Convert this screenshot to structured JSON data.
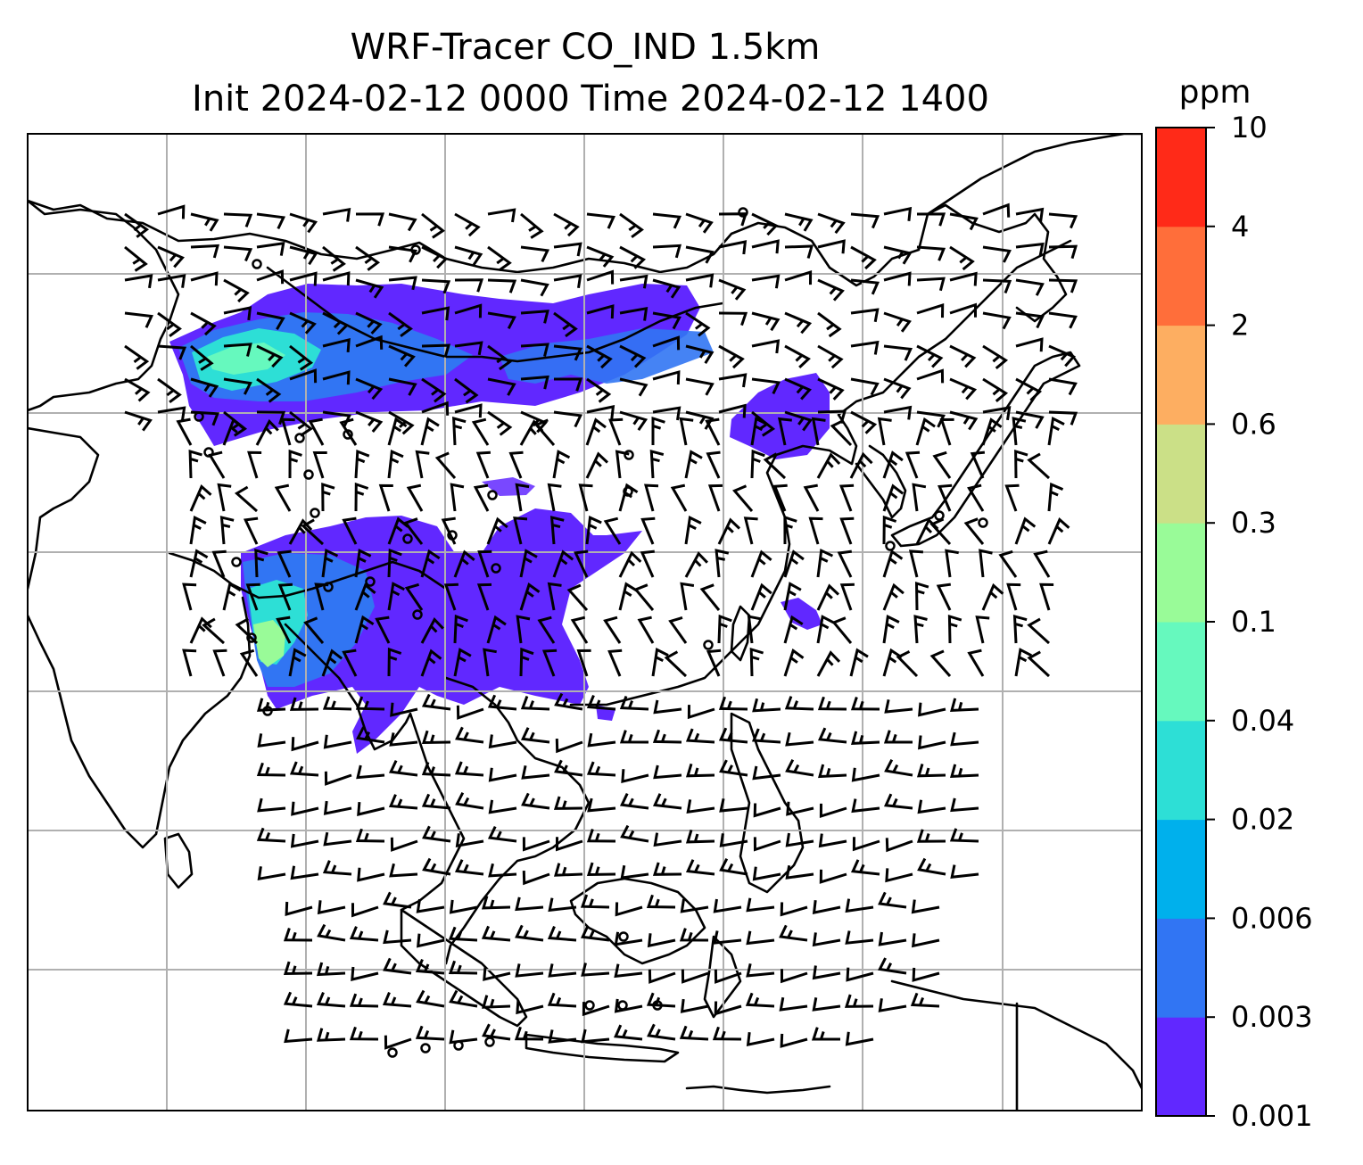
{
  "figure": {
    "title_line1": "WRF-Tracer CO_IND 1.5km",
    "title_line2": "Init 2024-02-12 0000 Time 2024-02-12 1400"
  },
  "colorbar": {
    "units": "ppm",
    "levels": [
      "0.001",
      "0.003",
      "0.006",
      "0.02",
      "0.04",
      "0.1",
      "0.3",
      "0.6",
      "2",
      "4",
      "10"
    ],
    "colors": [
      "#6128ff",
      "#3175f3",
      "#00b0ec",
      "#2ddfd6",
      "#66f9be",
      "#99fb98",
      "#cbe087",
      "#fdae61",
      "#ff6e3a",
      "#ff2a18"
    ]
  },
  "map": {
    "field": "CO_IND tracer concentration",
    "wind_display": "barbs",
    "gridlines": true
  },
  "chart_data": {
    "type": "heatmap",
    "title": "WRF-Tracer CO_IND 1.5km\nInit 2024-02-12 0000 Time 2024-02-12 1400",
    "colorbar_label": "ppm",
    "colorbar_levels": [
      0.001,
      0.003,
      0.006,
      0.02,
      0.04,
      0.1,
      0.3,
      0.6,
      2,
      4,
      10
    ],
    "colormap": "rainbow",
    "grid": true
  }
}
